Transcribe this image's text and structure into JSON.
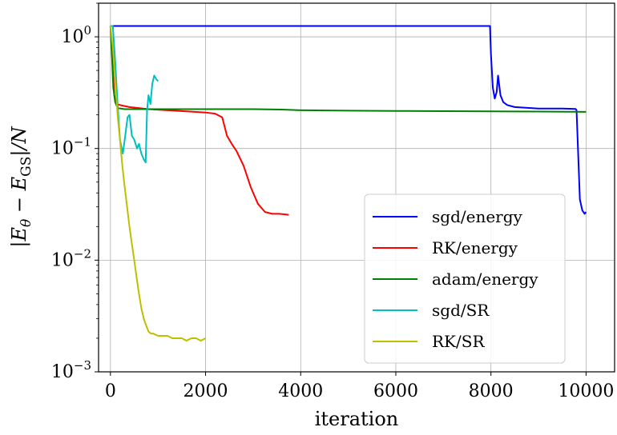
{
  "chart_data": {
    "type": "line",
    "title": "",
    "xlabel": "iteration",
    "ylabel": "|E_θ − E_GS|/N",
    "ylabel_parts": {
      "prefix": "|E",
      "sub1": "θ",
      "mid": " − E",
      "sub2": "GS",
      "suffix": "|/N"
    },
    "xlim": [
      -250,
      10600
    ],
    "ylim": [
      0.001,
      2.0
    ],
    "yscale": "log",
    "grid": true,
    "legend_position": "lower-right",
    "x_ticks": [
      0,
      2000,
      4000,
      6000,
      8000,
      10000
    ],
    "x_tick_labels": [
      "0",
      "2000",
      "4000",
      "6000",
      "8000",
      "10000"
    ],
    "y_ticks": [
      0.001,
      0.01,
      0.1,
      1.0
    ],
    "y_tick_labels": [
      {
        "base": "10",
        "exp": "−3"
      },
      {
        "base": "10",
        "exp": "−2"
      },
      {
        "base": "10",
        "exp": "−1"
      },
      {
        "base": "10",
        "exp": "0"
      }
    ],
    "series": [
      {
        "name": "sgd/energy",
        "color": "#0000ff",
        "x": [
          0,
          60,
          150,
          2000,
          4000,
          6000,
          7980,
          8000,
          8040,
          8080,
          8120,
          8150,
          8200,
          8260,
          8340,
          8500,
          9000,
          9500,
          9780,
          9800,
          9830,
          9870,
          9920,
          9970,
          10000
        ],
        "y": [
          1.25,
          1.25,
          1.25,
          1.25,
          1.25,
          1.25,
          1.25,
          0.7,
          0.35,
          0.28,
          0.32,
          0.45,
          0.3,
          0.26,
          0.245,
          0.235,
          0.228,
          0.228,
          0.226,
          0.22,
          0.1,
          0.035,
          0.028,
          0.026,
          0.027
        ]
      },
      {
        "name": "RK/energy",
        "color": "#ff0000",
        "x": [
          0,
          40,
          80,
          120,
          200,
          400,
          800,
          1200,
          1600,
          2000,
          2200,
          2350,
          2450,
          2550,
          2650,
          2800,
          2950,
          3100,
          3250,
          3400,
          3550,
          3750
        ],
        "y": [
          1.25,
          0.6,
          0.3,
          0.25,
          0.245,
          0.235,
          0.225,
          0.22,
          0.215,
          0.21,
          0.205,
          0.19,
          0.13,
          0.11,
          0.095,
          0.07,
          0.045,
          0.032,
          0.027,
          0.026,
          0.026,
          0.0255
        ]
      },
      {
        "name": "adam/energy",
        "color": "#008000",
        "x": [
          0,
          30,
          60,
          100,
          150,
          300,
          600,
          1000,
          2000,
          3000,
          3600,
          4000,
          5000,
          6000,
          7000,
          8000,
          9000,
          10000
        ],
        "y": [
          1.25,
          0.7,
          0.35,
          0.26,
          0.23,
          0.225,
          0.225,
          0.225,
          0.225,
          0.225,
          0.223,
          0.22,
          0.218,
          0.217,
          0.216,
          0.215,
          0.214,
          0.213
        ]
      },
      {
        "name": "sgd/SR",
        "color": "#00bfbf",
        "x": [
          0,
          50,
          100,
          150,
          200,
          260,
          300,
          360,
          400,
          450,
          500,
          560,
          600,
          650,
          700,
          740,
          770,
          800,
          840,
          880,
          920,
          960,
          1000
        ],
        "y": [
          1.25,
          1.25,
          0.6,
          0.25,
          0.12,
          0.09,
          0.12,
          0.19,
          0.2,
          0.13,
          0.12,
          0.1,
          0.11,
          0.09,
          0.08,
          0.075,
          0.22,
          0.3,
          0.25,
          0.38,
          0.45,
          0.42,
          0.4
        ]
      },
      {
        "name": "RK/SR",
        "color": "#bfbf00",
        "x": [
          0,
          50,
          100,
          150,
          200,
          250,
          300,
          350,
          400,
          450,
          500,
          550,
          600,
          650,
          700,
          750,
          800,
          850,
          900,
          1000,
          1100,
          1200,
          1300,
          1400,
          1500,
          1600,
          1700,
          1800,
          1900,
          2000
        ],
        "y": [
          1.25,
          0.8,
          0.4,
          0.2,
          0.12,
          0.07,
          0.045,
          0.03,
          0.02,
          0.014,
          0.01,
          0.007,
          0.005,
          0.0037,
          0.003,
          0.0026,
          0.0023,
          0.0022,
          0.0022,
          0.0021,
          0.0021,
          0.0021,
          0.002,
          0.002,
          0.002,
          0.0019,
          0.002,
          0.002,
          0.0019,
          0.002
        ]
      }
    ]
  }
}
